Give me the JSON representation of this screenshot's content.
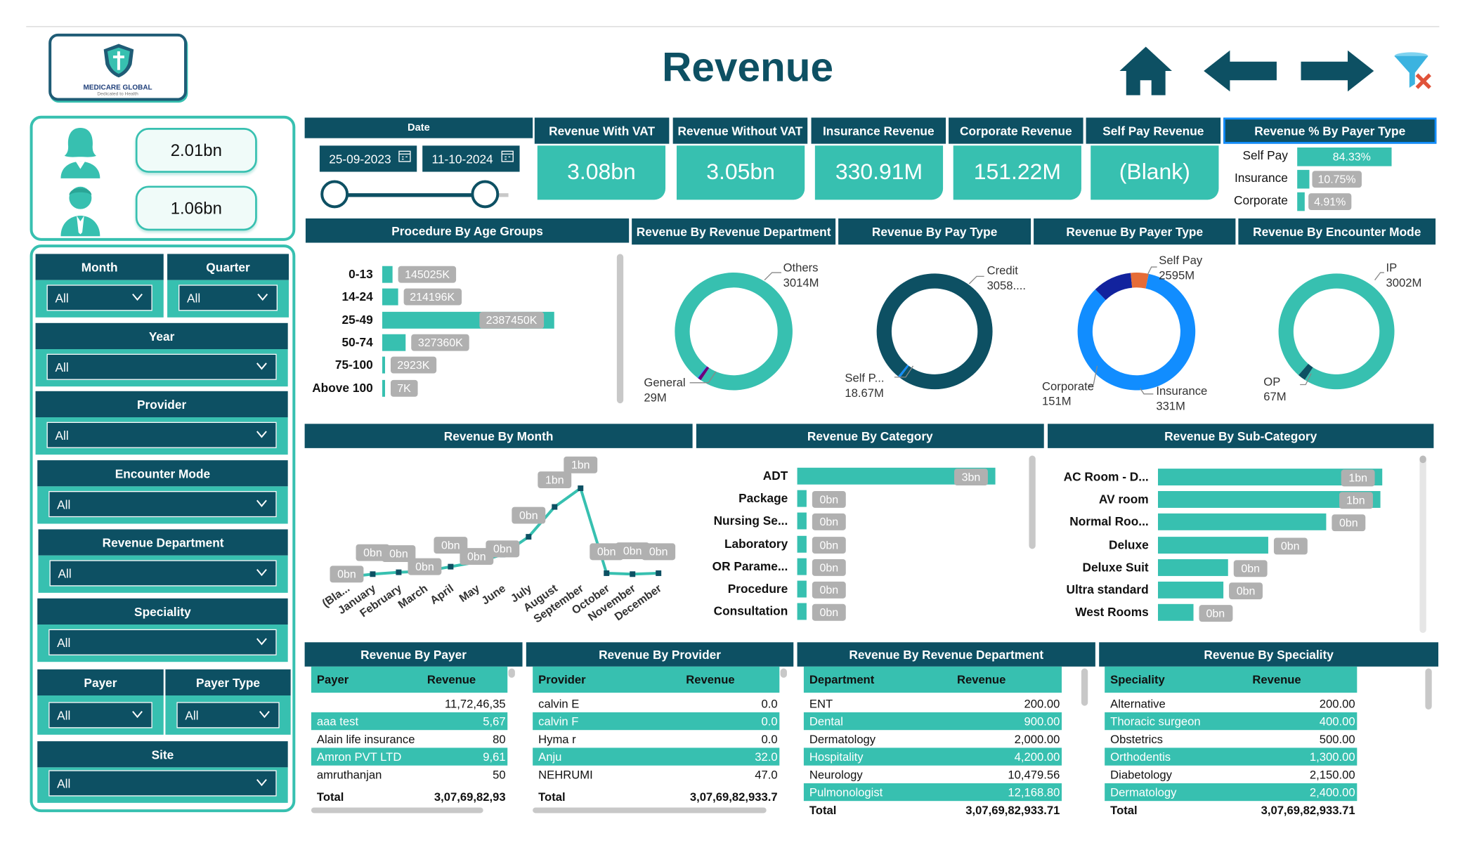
{
  "header": {
    "title": "Revenue",
    "logo_text": "MEDICARE GLOBAL",
    "logo_tagline": "Dedicated to Health",
    "nav": [
      "home-icon",
      "back-arrow-icon",
      "forward-arrow-icon",
      "clear-filter-icon"
    ]
  },
  "gender_cards": {
    "female_value": "2.01bn",
    "male_value": "1.06bn"
  },
  "date_slicer": {
    "label": "Date",
    "start": "25-09-2023",
    "end": "11-10-2024"
  },
  "kpis": [
    {
      "label": "Revenue With VAT",
      "value": "3.08bn"
    },
    {
      "label": "Revenue Without VAT",
      "value": "3.05bn"
    },
    {
      "label": "Insurance Revenue",
      "value": "330.91M"
    },
    {
      "label": "Corporate Revenue",
      "value": "151.22M"
    },
    {
      "label": "Self Pay Revenue",
      "value": "(Blank)"
    }
  ],
  "payer_percent": {
    "title": "Revenue % By Payer Type",
    "items": [
      {
        "name": "Self Pay",
        "label": "84.33%",
        "value": 84.33
      },
      {
        "name": "Insurance",
        "label": "10.75%",
        "value": 10.75
      },
      {
        "name": "Corporate",
        "label": "4.91%",
        "value": 4.91
      }
    ]
  },
  "filters": {
    "month": {
      "label": "Month",
      "value": "All"
    },
    "quarter": {
      "label": "Quarter",
      "value": "All"
    },
    "year": {
      "label": "Year",
      "value": "All"
    },
    "provider": {
      "label": "Provider",
      "value": "All"
    },
    "encounter_mode": {
      "label": "Encounter Mode",
      "value": "All"
    },
    "revenue_department": {
      "label": "Revenue Department",
      "value": "All"
    },
    "speciality": {
      "label": "Speciality",
      "value": "All"
    },
    "payer": {
      "label": "Payer",
      "value": "All"
    },
    "payer_type": {
      "label": "Payer Type",
      "value": "All"
    },
    "site": {
      "label": "Site",
      "value": "All"
    }
  },
  "colors": {
    "dark_teal": "#0d5063",
    "teal": "#37c0b0",
    "blue": "#118dff",
    "navy": "#12239e",
    "orange": "#e66c37",
    "purple": "#6b007b"
  },
  "chart_data": [
    {
      "id": "age",
      "type": "bar",
      "title": "Procedure By Age Groups",
      "categories": [
        "0-13",
        "14-24",
        "25-49",
        "50-74",
        "75-100",
        "Above 100"
      ],
      "values": [
        145025,
        214196,
        2387450,
        327360,
        2923,
        7
      ],
      "labels": [
        "145025K",
        "214196K",
        "2387450K",
        "327360K",
        "2923K",
        "7K"
      ]
    },
    {
      "id": "dept",
      "type": "pie",
      "title": "Revenue By Revenue Department",
      "slices": [
        {
          "name": "Others",
          "value": 3014,
          "label": "3014M",
          "color": "#37c0b0"
        },
        {
          "name": "General",
          "value": 29,
          "label": "29M",
          "color": "#6b007b"
        },
        {
          "name": "",
          "value": 6,
          "label": "",
          "color": "#118dff"
        }
      ]
    },
    {
      "id": "paytype",
      "type": "pie",
      "title": "Revenue By Pay Type",
      "slices": [
        {
          "name": "Credit",
          "value": 3058,
          "label": "3058....",
          "color": "#0d5063"
        },
        {
          "name": "Self P...",
          "value": 18.67,
          "label": "18.67M",
          "color": "#118dff"
        }
      ]
    },
    {
      "id": "payertype",
      "type": "pie",
      "title": "Revenue By Payer Type",
      "slices": [
        {
          "name": "Self Pay",
          "value": 2595,
          "label": "2595M",
          "color": "#118dff"
        },
        {
          "name": "Insurance",
          "value": 331,
          "label": "331M",
          "color": "#12239e"
        },
        {
          "name": "Corporate",
          "value": 151,
          "label": "151M",
          "color": "#e66c37"
        }
      ]
    },
    {
      "id": "encounter",
      "type": "pie",
      "title": "Revenue By Encounter Mode",
      "slices": [
        {
          "name": "IP",
          "value": 3002,
          "label": "3002M",
          "color": "#37c0b0"
        },
        {
          "name": "OP",
          "value": 67,
          "label": "67M",
          "color": "#0d5063"
        }
      ]
    },
    {
      "id": "month",
      "type": "line",
      "title": "Revenue By Month",
      "categories": [
        "(Bla...",
        "January",
        "February",
        "March",
        "April",
        "May",
        "June",
        "July",
        "August",
        "September",
        "October",
        "November",
        "December"
      ],
      "values": [
        0.02,
        0.05,
        0.07,
        0.08,
        0.13,
        0.18,
        0.26,
        0.45,
        0.77,
        0.97,
        0.06,
        0.05,
        0.06
      ],
      "labels": [
        "0bn",
        "0bn",
        "0bn",
        "0bn",
        "0bn",
        "0bn",
        "0bn",
        "0bn",
        "1bn",
        "1bn",
        "0bn",
        "0bn",
        "0bn"
      ]
    },
    {
      "id": "category",
      "type": "bar",
      "title": "Revenue By Category",
      "categories": [
        "ADT",
        "Package",
        "Nursing Se...",
        "Laboratory",
        "OR Parame...",
        "Procedure",
        "Consultation"
      ],
      "values": [
        2.8,
        0.03,
        0.02,
        0.005,
        0.004,
        0.003,
        0.002
      ],
      "labels": [
        "3bn",
        "0bn",
        "0bn",
        "0bn",
        "0bn",
        "0bn",
        "0bn"
      ]
    },
    {
      "id": "subcategory",
      "type": "bar",
      "title": "Revenue By Sub-Category",
      "categories": [
        "AC Room - D...",
        "AV room",
        "Normal Roo...",
        "Deluxe",
        "Deluxe Suit",
        "Ultra standard",
        "West Rooms"
      ],
      "values": [
        0.96,
        0.95,
        0.72,
        0.47,
        0.3,
        0.28,
        0.15
      ],
      "labels": [
        "1bn",
        "1bn",
        "0bn",
        "0bn",
        "0bn",
        "0bn",
        "0bn"
      ]
    }
  ],
  "tables": {
    "payer": {
      "title": "Revenue By Payer",
      "columns": [
        "Payer",
        "Revenue"
      ],
      "rows": [
        [
          "",
          "11,72,46,35"
        ],
        [
          "aaa test",
          "5,67"
        ],
        [
          "Alain life insurance",
          "80"
        ],
        [
          "Amron PVT LTD",
          "9,61"
        ],
        [
          "amruthanjan",
          "50"
        ]
      ],
      "total_label": "Total",
      "total": "3,07,69,82,93"
    },
    "provider": {
      "title": "Revenue By Provider",
      "columns": [
        "Provider",
        "Revenue"
      ],
      "rows": [
        [
          "calvin E",
          "0.0"
        ],
        [
          "calvin F",
          "0.0"
        ],
        [
          "Hyma r",
          "0.0"
        ],
        [
          "Anju",
          "32.0"
        ],
        [
          "NEHRUMI",
          "47.0"
        ]
      ],
      "total_label": "Total",
      "total": "3,07,69,82,933.7"
    },
    "department": {
      "title": "Revenue By Revenue Department",
      "columns": [
        "Department",
        "Revenue"
      ],
      "rows": [
        [
          "ENT",
          "200.00"
        ],
        [
          "Dental",
          "900.00"
        ],
        [
          "Dermatology",
          "2,000.00"
        ],
        [
          "Hospitality",
          "4,200.00"
        ],
        [
          "Neurology",
          "10,479.56"
        ],
        [
          "Pulmonologist",
          "12,168.80"
        ]
      ],
      "total_label": "Total",
      "total": "3,07,69,82,933.71"
    },
    "speciality": {
      "title": "Revenue By Speciality",
      "columns": [
        "Speciality",
        "Revenue"
      ],
      "rows": [
        [
          "Alternative",
          "200.00"
        ],
        [
          "Thoracic surgeon",
          "400.00"
        ],
        [
          "Obstetrics",
          "500.00"
        ],
        [
          "Orthodentis",
          "1,300.00"
        ],
        [
          "Diabetology",
          "2,150.00"
        ],
        [
          "Dermatology",
          "2,400.00"
        ]
      ],
      "total_label": "Total",
      "total": "3,07,69,82,933.71"
    }
  }
}
